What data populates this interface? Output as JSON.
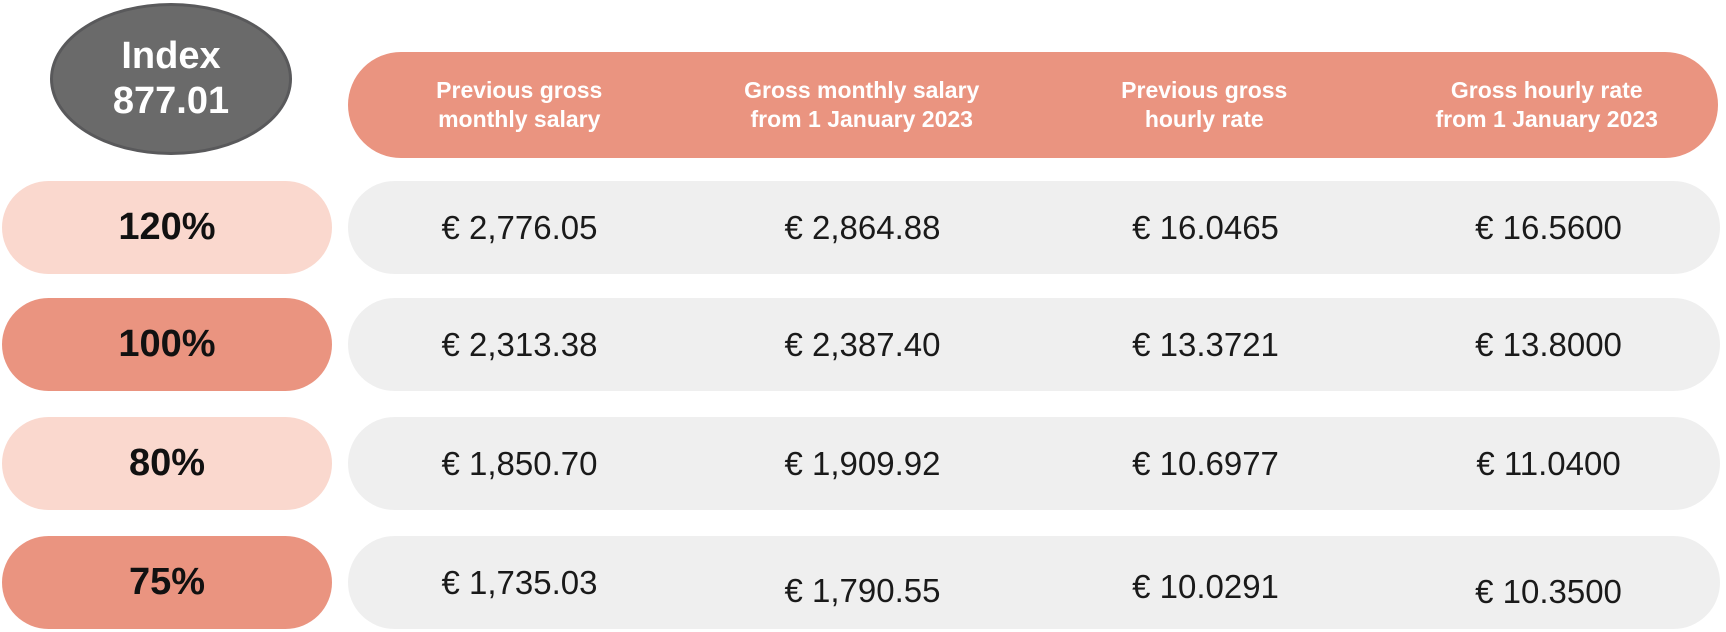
{
  "badge": {
    "line1": "Index",
    "line2": "877.01"
  },
  "columns": [
    {
      "line1": "Previous gross",
      "line2": "monthly salary"
    },
    {
      "line1": "Gross monthly salary",
      "line2": "from 1 January 2023"
    },
    {
      "line1": "Previous gross",
      "line2": "hourly rate"
    },
    {
      "line1": "Gross hourly rate",
      "line2": "from 1 January 2023"
    }
  ],
  "rows": [
    {
      "percent": "120%",
      "tone": "light",
      "values": [
        "€ 2,776.05",
        "€ 2,864.88",
        "€ 16.0465",
        "€ 16.5600"
      ]
    },
    {
      "percent": "100%",
      "tone": "dark",
      "values": [
        "€ 2,313.38",
        "€ 2,387.40",
        "€ 13.3721",
        "€ 13.8000"
      ]
    },
    {
      "percent": "80%",
      "tone": "light",
      "values": [
        "€ 1,850.70",
        "€ 1,909.92",
        "€ 10.6977",
        "€ 11.0400"
      ]
    },
    {
      "percent": "75%",
      "tone": "dark",
      "values": [
        "€ 1,735.03",
        "€ 1,790.55",
        "€ 10.0291",
        "€ 10.3500"
      ]
    }
  ],
  "colors": {
    "salmon": "#EA9480",
    "light_pink": "#FAD8CE",
    "row_gray": "#EFEFEF",
    "badge_gray": "#6A6A6A",
    "badge_border": "#59595B",
    "header_text": "#FFFFFF",
    "value_text": "#1A1A1A"
  },
  "chart_data": {
    "type": "table",
    "title": "Index 877.01",
    "row_headers": [
      "120%",
      "100%",
      "80%",
      "75%"
    ],
    "column_headers": [
      "Previous gross monthly salary",
      "Gross monthly salary from 1 January 2023",
      "Previous gross hourly rate",
      "Gross hourly rate from 1 January 2023"
    ],
    "cells": [
      [
        2776.05,
        2864.88,
        16.0465,
        16.56
      ],
      [
        2313.38,
        2387.4,
        13.3721,
        13.8
      ],
      [
        1850.7,
        1909.92,
        10.6977,
        11.04
      ],
      [
        1735.03,
        1790.55,
        10.0291,
        10.35
      ]
    ],
    "currency": "EUR"
  }
}
